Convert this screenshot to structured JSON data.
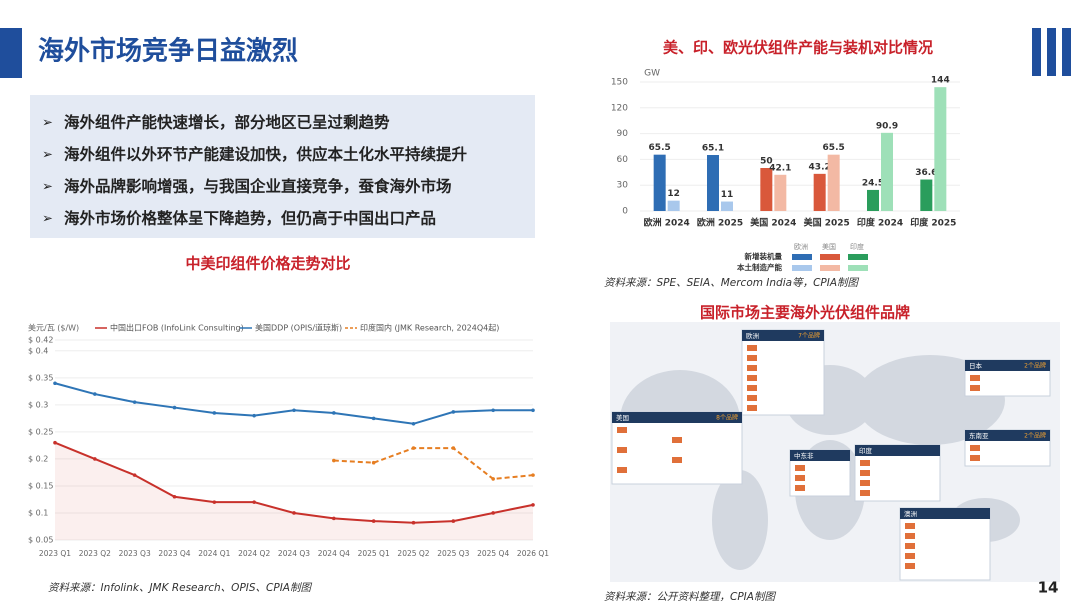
{
  "header": {
    "title": "海外市场竞争日益激烈"
  },
  "bullets": [
    "海外组件产能快速增长，部分地区已呈过剩趋势",
    "海外组件以外环节产能建设加快，供应本土化水平持续提升",
    "海外品牌影响增强，与我国企业直接竞争，蚕食海外市场",
    "海外市场价格整体呈下降趋势，但仍高于中国出口产品"
  ],
  "page_number": "14",
  "chart_data": [
    {
      "type": "line",
      "title": "中美印组件价格走势对比",
      "y_label": "美元/瓦 ($/W)",
      "legend": "top",
      "grid": true,
      "categories": [
        "2023 Q1",
        "2023 Q2",
        "2023 Q3",
        "2023 Q4",
        "2024 Q1",
        "2024 Q2",
        "2024 Q3",
        "2024 Q4",
        "2025 Q1",
        "2025 Q2",
        "2025 Q3",
        "2025 Q4",
        "2026 Q1"
      ],
      "ylim": [
        0.05,
        0.42
      ],
      "yticks": [
        {
          "value": 0.05,
          "label": "$ 0.05"
        },
        {
          "value": 0.1,
          "label": "$ 0.1"
        },
        {
          "value": 0.15,
          "label": "$ 0.15"
        },
        {
          "value": 0.2,
          "label": "$ 0.2"
        },
        {
          "value": 0.25,
          "label": "$ 0.25"
        },
        {
          "value": 0.3,
          "label": "$ 0.3"
        },
        {
          "value": 0.35,
          "label": "$ 0.35"
        },
        {
          "value": 0.4,
          "label": "$ 0.4"
        },
        {
          "value": 0.42,
          "label": "$ 0.42"
        }
      ],
      "series": [
        {
          "name": "中国出口FOB (InfoLink Consulting)",
          "color": "#c8312b",
          "area": true,
          "values": [
            0.23,
            0.2,
            0.17,
            0.13,
            0.12,
            0.12,
            0.1,
            0.09,
            0.085,
            0.082,
            0.085,
            0.1,
            0.115
          ]
        },
        {
          "name": "美国DDP (OPIS/道琼斯)",
          "color": "#2e75b6",
          "values": [
            0.34,
            0.32,
            0.305,
            0.295,
            0.285,
            0.28,
            0.29,
            0.285,
            0.275,
            0.265,
            0.287,
            0.29,
            0.29
          ]
        },
        {
          "name": "印度国内 (JMK Research, 2024Q4起)",
          "color": "#e67e22",
          "dashed": true,
          "values": [
            null,
            null,
            null,
            null,
            null,
            null,
            null,
            0.197,
            0.193,
            0.22,
            0.22,
            0.163,
            0.17
          ]
        }
      ],
      "source": "资料来源：Infolink、JMK Research、OPIS、CPIA制图"
    },
    {
      "type": "bar",
      "title": "美、印、欧光伏组件产能与装机对比情况",
      "y_label": "GW",
      "grid": true,
      "categories": [
        "欧洲 2024",
        "欧洲 2025",
        "美国 2024",
        "美国 2025",
        "印度 2024",
        "印度 2025"
      ],
      "ylim": [
        0,
        150
      ],
      "yticks": [
        0,
        30,
        60,
        90,
        120,
        150
      ],
      "legend_groups": [
        "欧洲",
        "美国",
        "印度"
      ],
      "series": [
        {
          "name": "新增装机量",
          "colors": [
            "#2e6db4",
            "#2e6db4",
            "#d9583b",
            "#d9583b",
            "#2a9d5c",
            "#2a9d5c"
          ],
          "values": [
            65.5,
            65.1,
            50,
            43.2,
            24.5,
            36.6
          ]
        },
        {
          "name": "本土制造产能",
          "colors": [
            "#a9c8ec",
            "#a9c8ec",
            "#f3b9a4",
            "#f3b9a4",
            "#9ee0b8",
            "#9ee0b8"
          ],
          "values": [
            12,
            11,
            42.1,
            65.5,
            90.9,
            144
          ]
        }
      ],
      "source": "资料来源：SPE、SEIA、Mercom India等，CPIA制图"
    }
  ],
  "map": {
    "title": "国际市场主要海外光伏组件品牌",
    "source": "资料来源：公开资料整理，CPIA制图",
    "regions": [
      {
        "name": "欧洲",
        "count": "7个品牌"
      },
      {
        "name": "日本",
        "count": "2个品牌"
      },
      {
        "name": "美国",
        "count": "8个品牌"
      },
      {
        "name": "中东非"
      },
      {
        "name": "印度"
      },
      {
        "name": "东南亚",
        "count": "2个品牌"
      },
      {
        "name": "澳洲"
      }
    ]
  }
}
